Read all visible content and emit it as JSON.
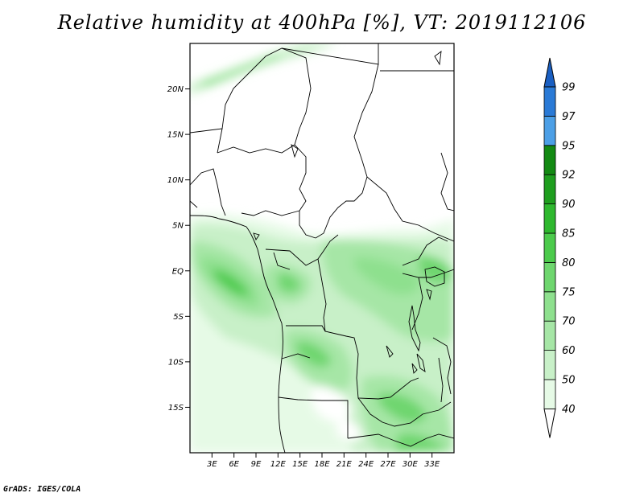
{
  "title": "Relative humidity at 400hPa [%], VT: 2019112106",
  "footer": "GrADS: IGES/COLA",
  "map": {
    "lon_range": [
      0,
      36
    ],
    "lat_range": [
      -20,
      25
    ],
    "lat_ticks": [
      {
        "value": 20,
        "label": "20N"
      },
      {
        "value": 15,
        "label": "15N"
      },
      {
        "value": 10,
        "label": "10N"
      },
      {
        "value": 5,
        "label": "5N"
      },
      {
        "value": 0,
        "label": "EQ"
      },
      {
        "value": -5,
        "label": "5S"
      },
      {
        "value": -10,
        "label": "10S"
      },
      {
        "value": -15,
        "label": "15S"
      }
    ],
    "lon_ticks": [
      {
        "value": 3,
        "label": "3E"
      },
      {
        "value": 6,
        "label": "6E"
      },
      {
        "value": 9,
        "label": "9E"
      },
      {
        "value": 12,
        "label": "12E"
      },
      {
        "value": 15,
        "label": "15E"
      },
      {
        "value": 18,
        "label": "18E"
      },
      {
        "value": 21,
        "label": "21E"
      },
      {
        "value": 24,
        "label": "24E"
      },
      {
        "value": 27,
        "label": "27E"
      },
      {
        "value": 30,
        "label": "30E"
      },
      {
        "value": 33,
        "label": "33E"
      }
    ]
  },
  "colorbar": {
    "levels": [
      "40",
      "50",
      "60",
      "70",
      "75",
      "80",
      "85",
      "90",
      "92",
      "95",
      "97",
      "99"
    ],
    "colors": [
      "#ffffff",
      "#e6fae6",
      "#c8f0c8",
      "#a6e6a6",
      "#8ee08e",
      "#6ed66e",
      "#4ccb4c",
      "#2eb82e",
      "#1e9e1e",
      "#138a13",
      "#4c9fe6",
      "#2a7ad6",
      "#1a5fc2"
    ]
  }
}
